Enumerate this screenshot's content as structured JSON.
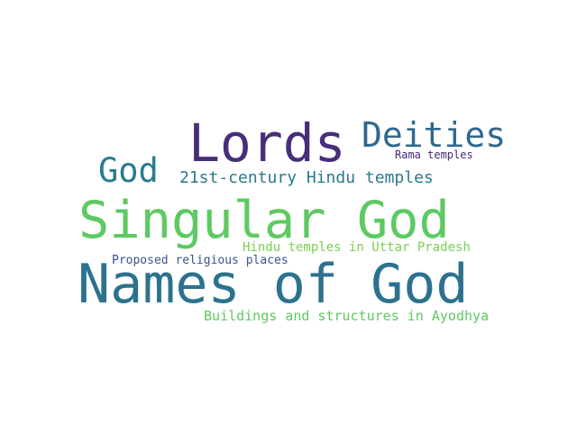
{
  "word_cloud": {
    "words": [
      {
        "text": "Lords",
        "color": "#472d7b"
      },
      {
        "text": "Deities",
        "color": "#31688e"
      },
      {
        "text": "God",
        "color": "#287c8e"
      },
      {
        "text": "21st-century Hindu temples",
        "color": "#2a788e"
      },
      {
        "text": "Rama temples",
        "color": "#482677"
      },
      {
        "text": "Singular God",
        "color": "#5ec962"
      },
      {
        "text": "Hindu temples in Uttar Pradesh",
        "color": "#7ad151"
      },
      {
        "text": "Proposed religious places",
        "color": "#3b528b"
      },
      {
        "text": "Names of God",
        "color": "#2c728e"
      },
      {
        "text": "Buildings and structures in Ayodhya",
        "color": "#5ec962"
      }
    ]
  }
}
